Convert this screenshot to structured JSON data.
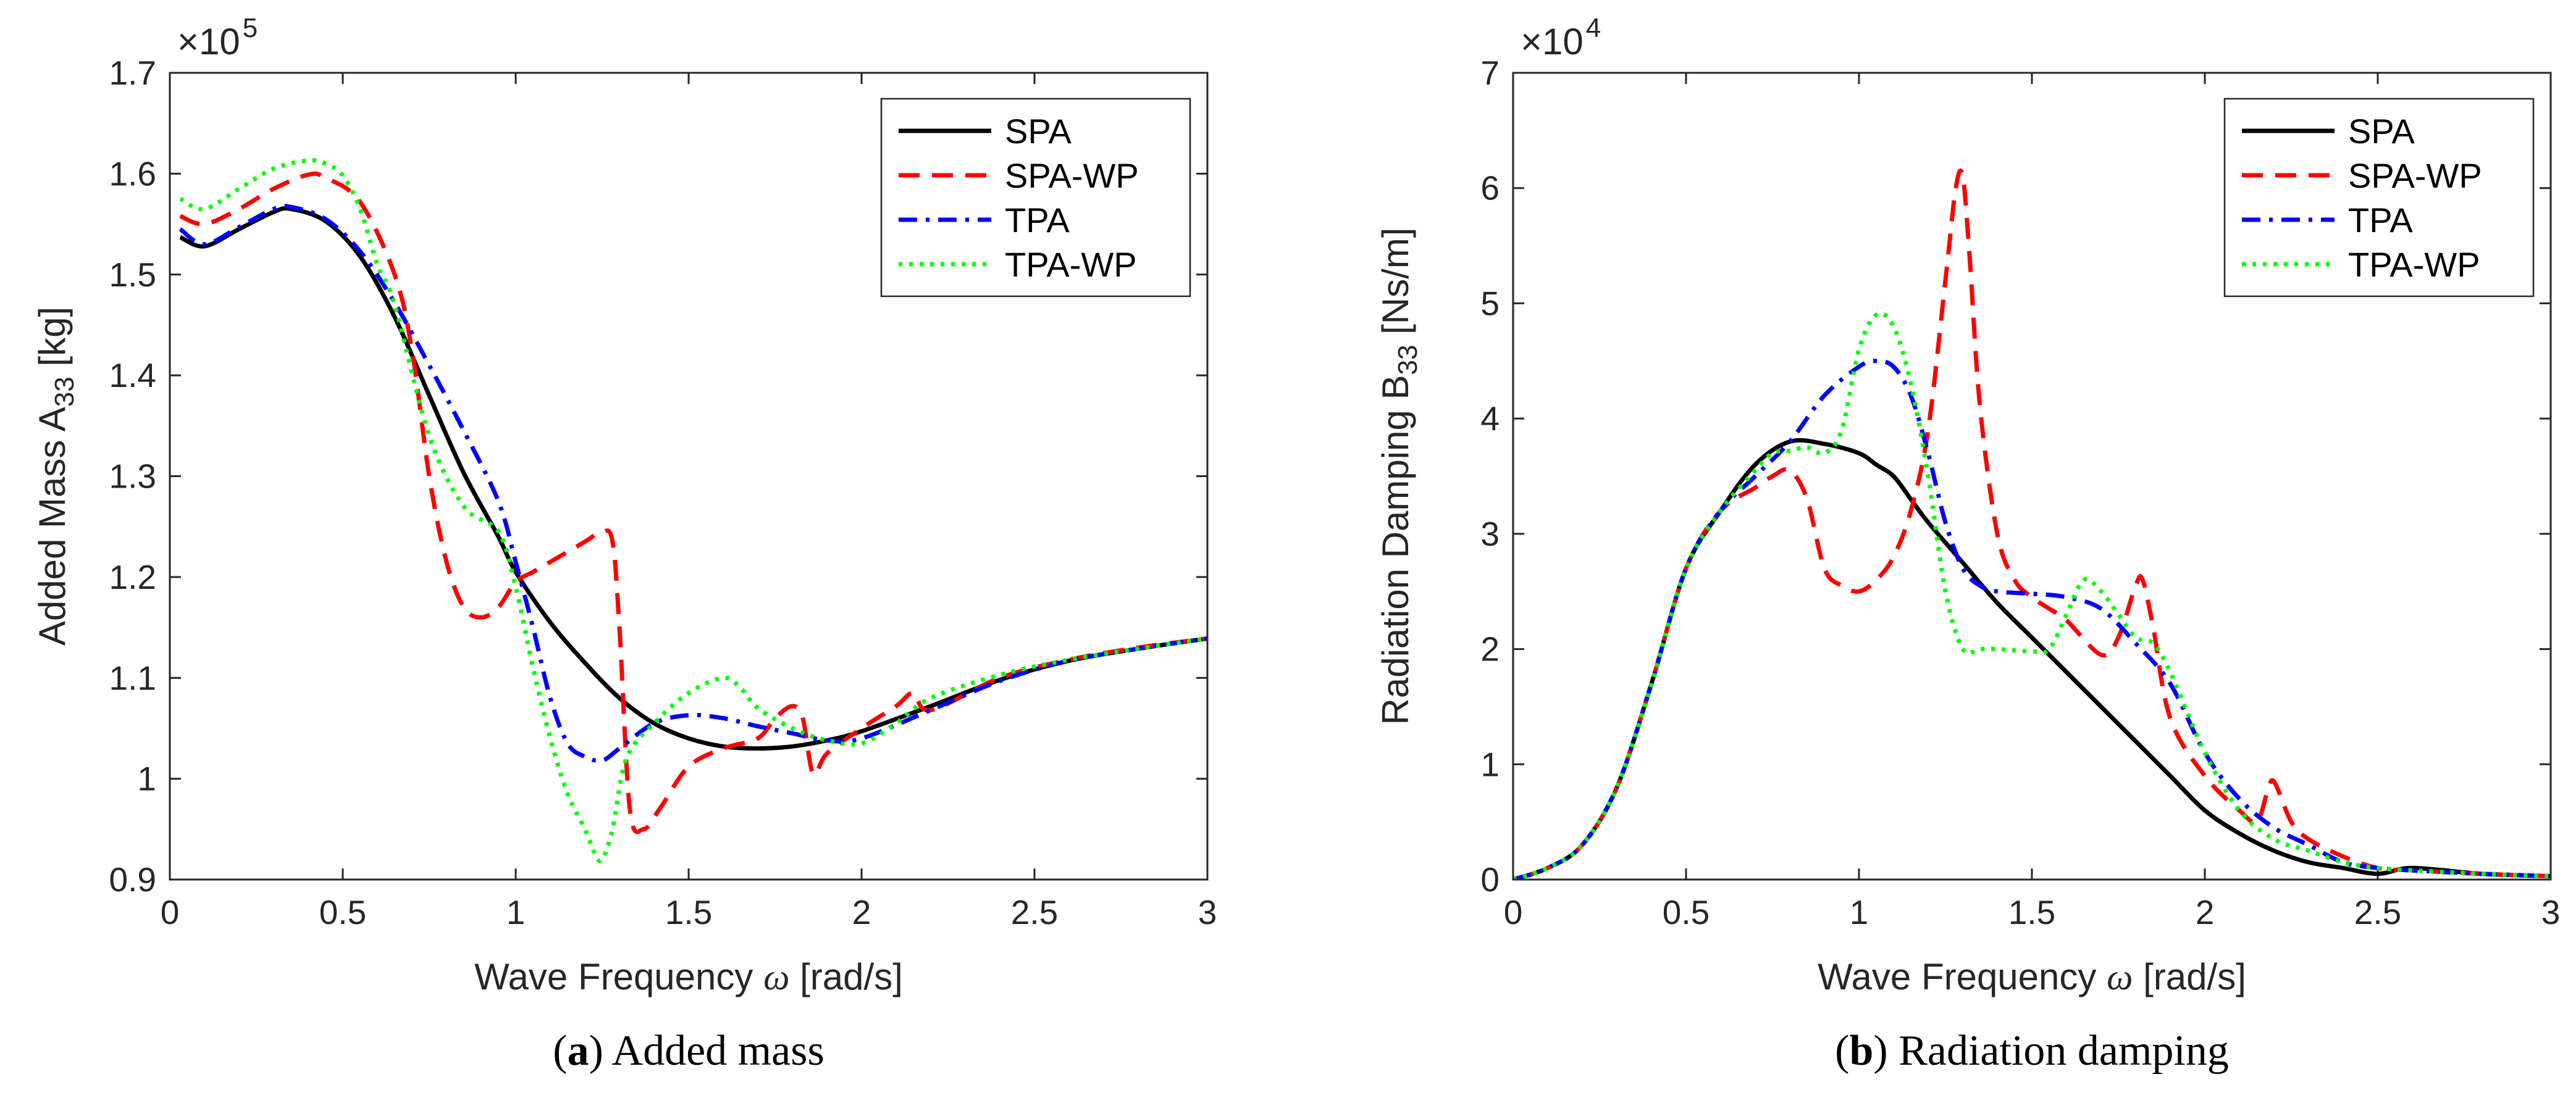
{
  "chart_data": [
    {
      "type": "line",
      "panel": "a",
      "caption_letter": "a",
      "caption_text": " Added mass",
      "xlabel_pre": "Wave Frequency ",
      "xlabel_symbol": "ω",
      "xlabel_post": " [rad/s]",
      "ylabel_main": "Added Mass A",
      "ylabel_sub": "33",
      "ylabel_post": " [kg]",
      "multiplier_base": "×10",
      "multiplier_exp": "5",
      "xlim": [
        0,
        3
      ],
      "ylim": [
        0.9,
        1.7
      ],
      "xticks": [
        0,
        0.5,
        1,
        1.5,
        2,
        2.5,
        3
      ],
      "xtick_labels": [
        "0",
        "0.5",
        "1",
        "1.5",
        "2",
        "2.5",
        "3"
      ],
      "yticks": [
        0.9,
        1.0,
        1.1,
        1.2,
        1.3,
        1.4,
        1.5,
        1.6,
        1.7
      ],
      "ytick_labels": [
        "0.9",
        "1",
        "1.1",
        "1.2",
        "1.3",
        "1.4",
        "1.5",
        "1.6",
        "1.7"
      ],
      "legend_position": "top-right",
      "series": [
        {
          "name": "SPA",
          "color": "#000000",
          "style": "solid",
          "x": [
            0.03,
            0.1,
            0.2,
            0.3,
            0.35,
            0.45,
            0.55,
            0.65,
            0.75,
            0.85,
            0.95,
            1.0,
            1.1,
            1.2,
            1.3,
            1.4,
            1.5,
            1.6,
            1.7,
            1.8,
            1.9,
            2.0,
            2.2,
            2.4,
            2.6,
            2.8,
            3.0
          ],
          "y": [
            1.537,
            1.528,
            1.545,
            1.562,
            1.565,
            1.553,
            1.518,
            1.458,
            1.38,
            1.303,
            1.24,
            1.205,
            1.155,
            1.115,
            1.08,
            1.055,
            1.04,
            1.032,
            1.03,
            1.032,
            1.038,
            1.047,
            1.072,
            1.098,
            1.117,
            1.129,
            1.139
          ]
        },
        {
          "name": "SPA-WP",
          "color": "#ff0000",
          "style": "dashed",
          "x": [
            0.03,
            0.1,
            0.2,
            0.3,
            0.4,
            0.45,
            0.55,
            0.65,
            0.7,
            0.75,
            0.8,
            0.85,
            0.9,
            0.95,
            1.0,
            1.05,
            1.1,
            1.2,
            1.25,
            1.28,
            1.3,
            1.33,
            1.37,
            1.42,
            1.5,
            1.6,
            1.7,
            1.75,
            1.8,
            1.83,
            1.86,
            1.9,
            2.0,
            2.1,
            2.15,
            2.2,
            2.4,
            2.6,
            2.8,
            3.0
          ],
          "y": [
            1.558,
            1.55,
            1.565,
            1.585,
            1.599,
            1.596,
            1.572,
            1.5,
            1.425,
            1.3,
            1.215,
            1.17,
            1.16,
            1.17,
            1.195,
            1.205,
            1.215,
            1.235,
            1.245,
            1.235,
            1.15,
            0.97,
            0.95,
            0.972,
            1.012,
            1.03,
            1.04,
            1.06,
            1.072,
            1.06,
            1.005,
            1.025,
            1.05,
            1.072,
            1.085,
            1.068,
            1.1,
            1.118,
            1.13,
            1.139
          ]
        },
        {
          "name": "TPA",
          "color": "#0000ff",
          "style": "dashdot",
          "x": [
            0.03,
            0.1,
            0.2,
            0.3,
            0.35,
            0.45,
            0.55,
            0.65,
            0.75,
            0.85,
            0.95,
            1.0,
            1.05,
            1.1,
            1.15,
            1.2,
            1.25,
            1.3,
            1.4,
            1.5,
            1.6,
            1.7,
            1.8,
            1.9,
            2.0,
            2.2,
            2.4,
            2.6,
            2.8,
            3.0
          ],
          "y": [
            1.545,
            1.53,
            1.547,
            1.565,
            1.567,
            1.555,
            1.523,
            1.472,
            1.41,
            1.345,
            1.275,
            1.215,
            1.15,
            1.08,
            1.035,
            1.022,
            1.018,
            1.03,
            1.055,
            1.063,
            1.06,
            1.052,
            1.045,
            1.038,
            1.04,
            1.068,
            1.097,
            1.117,
            1.129,
            1.139
          ]
        },
        {
          "name": "TPA-WP",
          "color": "#00ff00",
          "style": "dotted",
          "x": [
            0.03,
            0.1,
            0.2,
            0.3,
            0.4,
            0.45,
            0.5,
            0.55,
            0.6,
            0.65,
            0.75,
            0.85,
            0.95,
            1.0,
            1.05,
            1.1,
            1.15,
            1.2,
            1.23,
            1.25,
            1.28,
            1.32,
            1.4,
            1.5,
            1.6,
            1.65,
            1.7,
            1.8,
            1.9,
            2.0,
            2.1,
            2.2,
            2.4,
            2.6,
            2.8,
            3.0
          ],
          "y": [
            1.575,
            1.565,
            1.585,
            1.605,
            1.613,
            1.61,
            1.598,
            1.565,
            1.51,
            1.47,
            1.34,
            1.27,
            1.245,
            1.19,
            1.11,
            1.04,
            0.985,
            0.95,
            0.925,
            0.92,
            0.95,
            1.02,
            1.055,
            1.085,
            1.1,
            1.09,
            1.07,
            1.05,
            1.038,
            1.035,
            1.055,
            1.08,
            1.103,
            1.118,
            1.129,
            1.139
          ]
        }
      ]
    },
    {
      "type": "line",
      "panel": "b",
      "caption_letter": "b",
      "caption_text": " Radiation damping",
      "xlabel_pre": "Wave Frequency ",
      "xlabel_symbol": "ω",
      "xlabel_post": " [rad/s]",
      "ylabel_main": "Radiation Damping B",
      "ylabel_sub": "33",
      "ylabel_post": " [Ns/m]",
      "multiplier_base": "×10",
      "multiplier_exp": "4",
      "xlim": [
        0,
        3
      ],
      "ylim": [
        0,
        7
      ],
      "xticks": [
        0,
        0.5,
        1,
        1.5,
        2,
        2.5,
        3
      ],
      "xtick_labels": [
        "0",
        "0.5",
        "1",
        "1.5",
        "2",
        "2.5",
        "3"
      ],
      "yticks": [
        0,
        1,
        2,
        3,
        4,
        5,
        6,
        7
      ],
      "ytick_labels": [
        "0",
        "1",
        "2",
        "3",
        "4",
        "5",
        "6",
        "7"
      ],
      "legend_position": "top-right",
      "series": [
        {
          "name": "SPA",
          "color": "#000000",
          "style": "solid",
          "x": [
            0,
            0.1,
            0.2,
            0.3,
            0.4,
            0.5,
            0.6,
            0.7,
            0.8,
            0.9,
            1.0,
            1.05,
            1.1,
            1.15,
            1.2,
            1.3,
            1.4,
            1.5,
            1.6,
            1.7,
            1.8,
            1.9,
            2.0,
            2.1,
            2.2,
            2.3,
            2.4,
            2.5,
            2.6,
            2.8,
            3.0
          ],
          "y": [
            0,
            0.1,
            0.3,
            0.8,
            1.7,
            2.7,
            3.2,
            3.6,
            3.8,
            3.78,
            3.7,
            3.6,
            3.5,
            3.3,
            3.1,
            2.75,
            2.4,
            2.1,
            1.8,
            1.5,
            1.2,
            0.9,
            0.6,
            0.4,
            0.25,
            0.15,
            0.1,
            0.05,
            0.1,
            0.05,
            0.03
          ]
        },
        {
          "name": "SPA-WP",
          "color": "#ff0000",
          "style": "dashed",
          "x": [
            0,
            0.1,
            0.2,
            0.3,
            0.4,
            0.5,
            0.6,
            0.7,
            0.75,
            0.8,
            0.85,
            0.9,
            0.95,
            1.0,
            1.05,
            1.1,
            1.15,
            1.2,
            1.25,
            1.28,
            1.3,
            1.32,
            1.35,
            1.4,
            1.45,
            1.5,
            1.55,
            1.6,
            1.7,
            1.75,
            1.8,
            1.82,
            1.85,
            1.9,
            2.0,
            2.1,
            2.15,
            2.18,
            2.2,
            2.25,
            2.3,
            2.4,
            2.5,
            2.6,
            2.8,
            3.0
          ],
          "y": [
            0,
            0.1,
            0.3,
            0.8,
            1.7,
            2.7,
            3.2,
            3.4,
            3.5,
            3.55,
            3.3,
            2.7,
            2.55,
            2.5,
            2.6,
            2.8,
            3.2,
            3.9,
            5.2,
            6.0,
            6.1,
            5.4,
            4.1,
            3.0,
            2.6,
            2.45,
            2.35,
            2.25,
            1.95,
            2.1,
            2.55,
            2.6,
            2.2,
            1.4,
            0.9,
            0.6,
            0.5,
            0.75,
            0.85,
            0.5,
            0.35,
            0.2,
            0.1,
            0.08,
            0.05,
            0.03
          ]
        },
        {
          "name": "TPA",
          "color": "#0000ff",
          "style": "dashdot",
          "x": [
            0,
            0.1,
            0.2,
            0.3,
            0.4,
            0.5,
            0.6,
            0.7,
            0.8,
            0.9,
            1.0,
            1.05,
            1.1,
            1.15,
            1.2,
            1.25,
            1.3,
            1.35,
            1.4,
            1.5,
            1.6,
            1.7,
            1.8,
            1.9,
            2.0,
            2.1,
            2.2,
            2.3,
            2.4,
            2.5,
            2.6,
            2.8,
            3.0
          ],
          "y": [
            0,
            0.1,
            0.3,
            0.8,
            1.7,
            2.7,
            3.2,
            3.5,
            3.8,
            4.2,
            4.45,
            4.5,
            4.45,
            4.2,
            3.7,
            3.1,
            2.7,
            2.55,
            2.5,
            2.48,
            2.45,
            2.35,
            2.05,
            1.7,
            1.1,
            0.7,
            0.45,
            0.3,
            0.15,
            0.1,
            0.08,
            0.05,
            0.03
          ]
        },
        {
          "name": "TPA-WP",
          "color": "#00ff00",
          "style": "dotted",
          "x": [
            0,
            0.1,
            0.2,
            0.3,
            0.4,
            0.5,
            0.6,
            0.7,
            0.75,
            0.8,
            0.85,
            0.9,
            0.95,
            1.0,
            1.05,
            1.1,
            1.15,
            1.2,
            1.25,
            1.3,
            1.35,
            1.4,
            1.5,
            1.55,
            1.6,
            1.65,
            1.7,
            1.75,
            1.8,
            1.85,
            1.9,
            2.0,
            2.1,
            2.2,
            2.3,
            2.4,
            2.5,
            2.6,
            2.8,
            3.0
          ],
          "y": [
            0,
            0.1,
            0.3,
            0.8,
            1.7,
            2.7,
            3.2,
            3.55,
            3.7,
            3.72,
            3.75,
            3.7,
            3.9,
            4.6,
            4.9,
            4.8,
            4.3,
            3.5,
            2.5,
            2.0,
            2.0,
            2.0,
            1.98,
            2.0,
            2.3,
            2.6,
            2.5,
            2.3,
            2.1,
            2.05,
            1.8,
            1.1,
            0.6,
            0.35,
            0.25,
            0.15,
            0.1,
            0.08,
            0.05,
            0.03
          ]
        }
      ]
    }
  ]
}
